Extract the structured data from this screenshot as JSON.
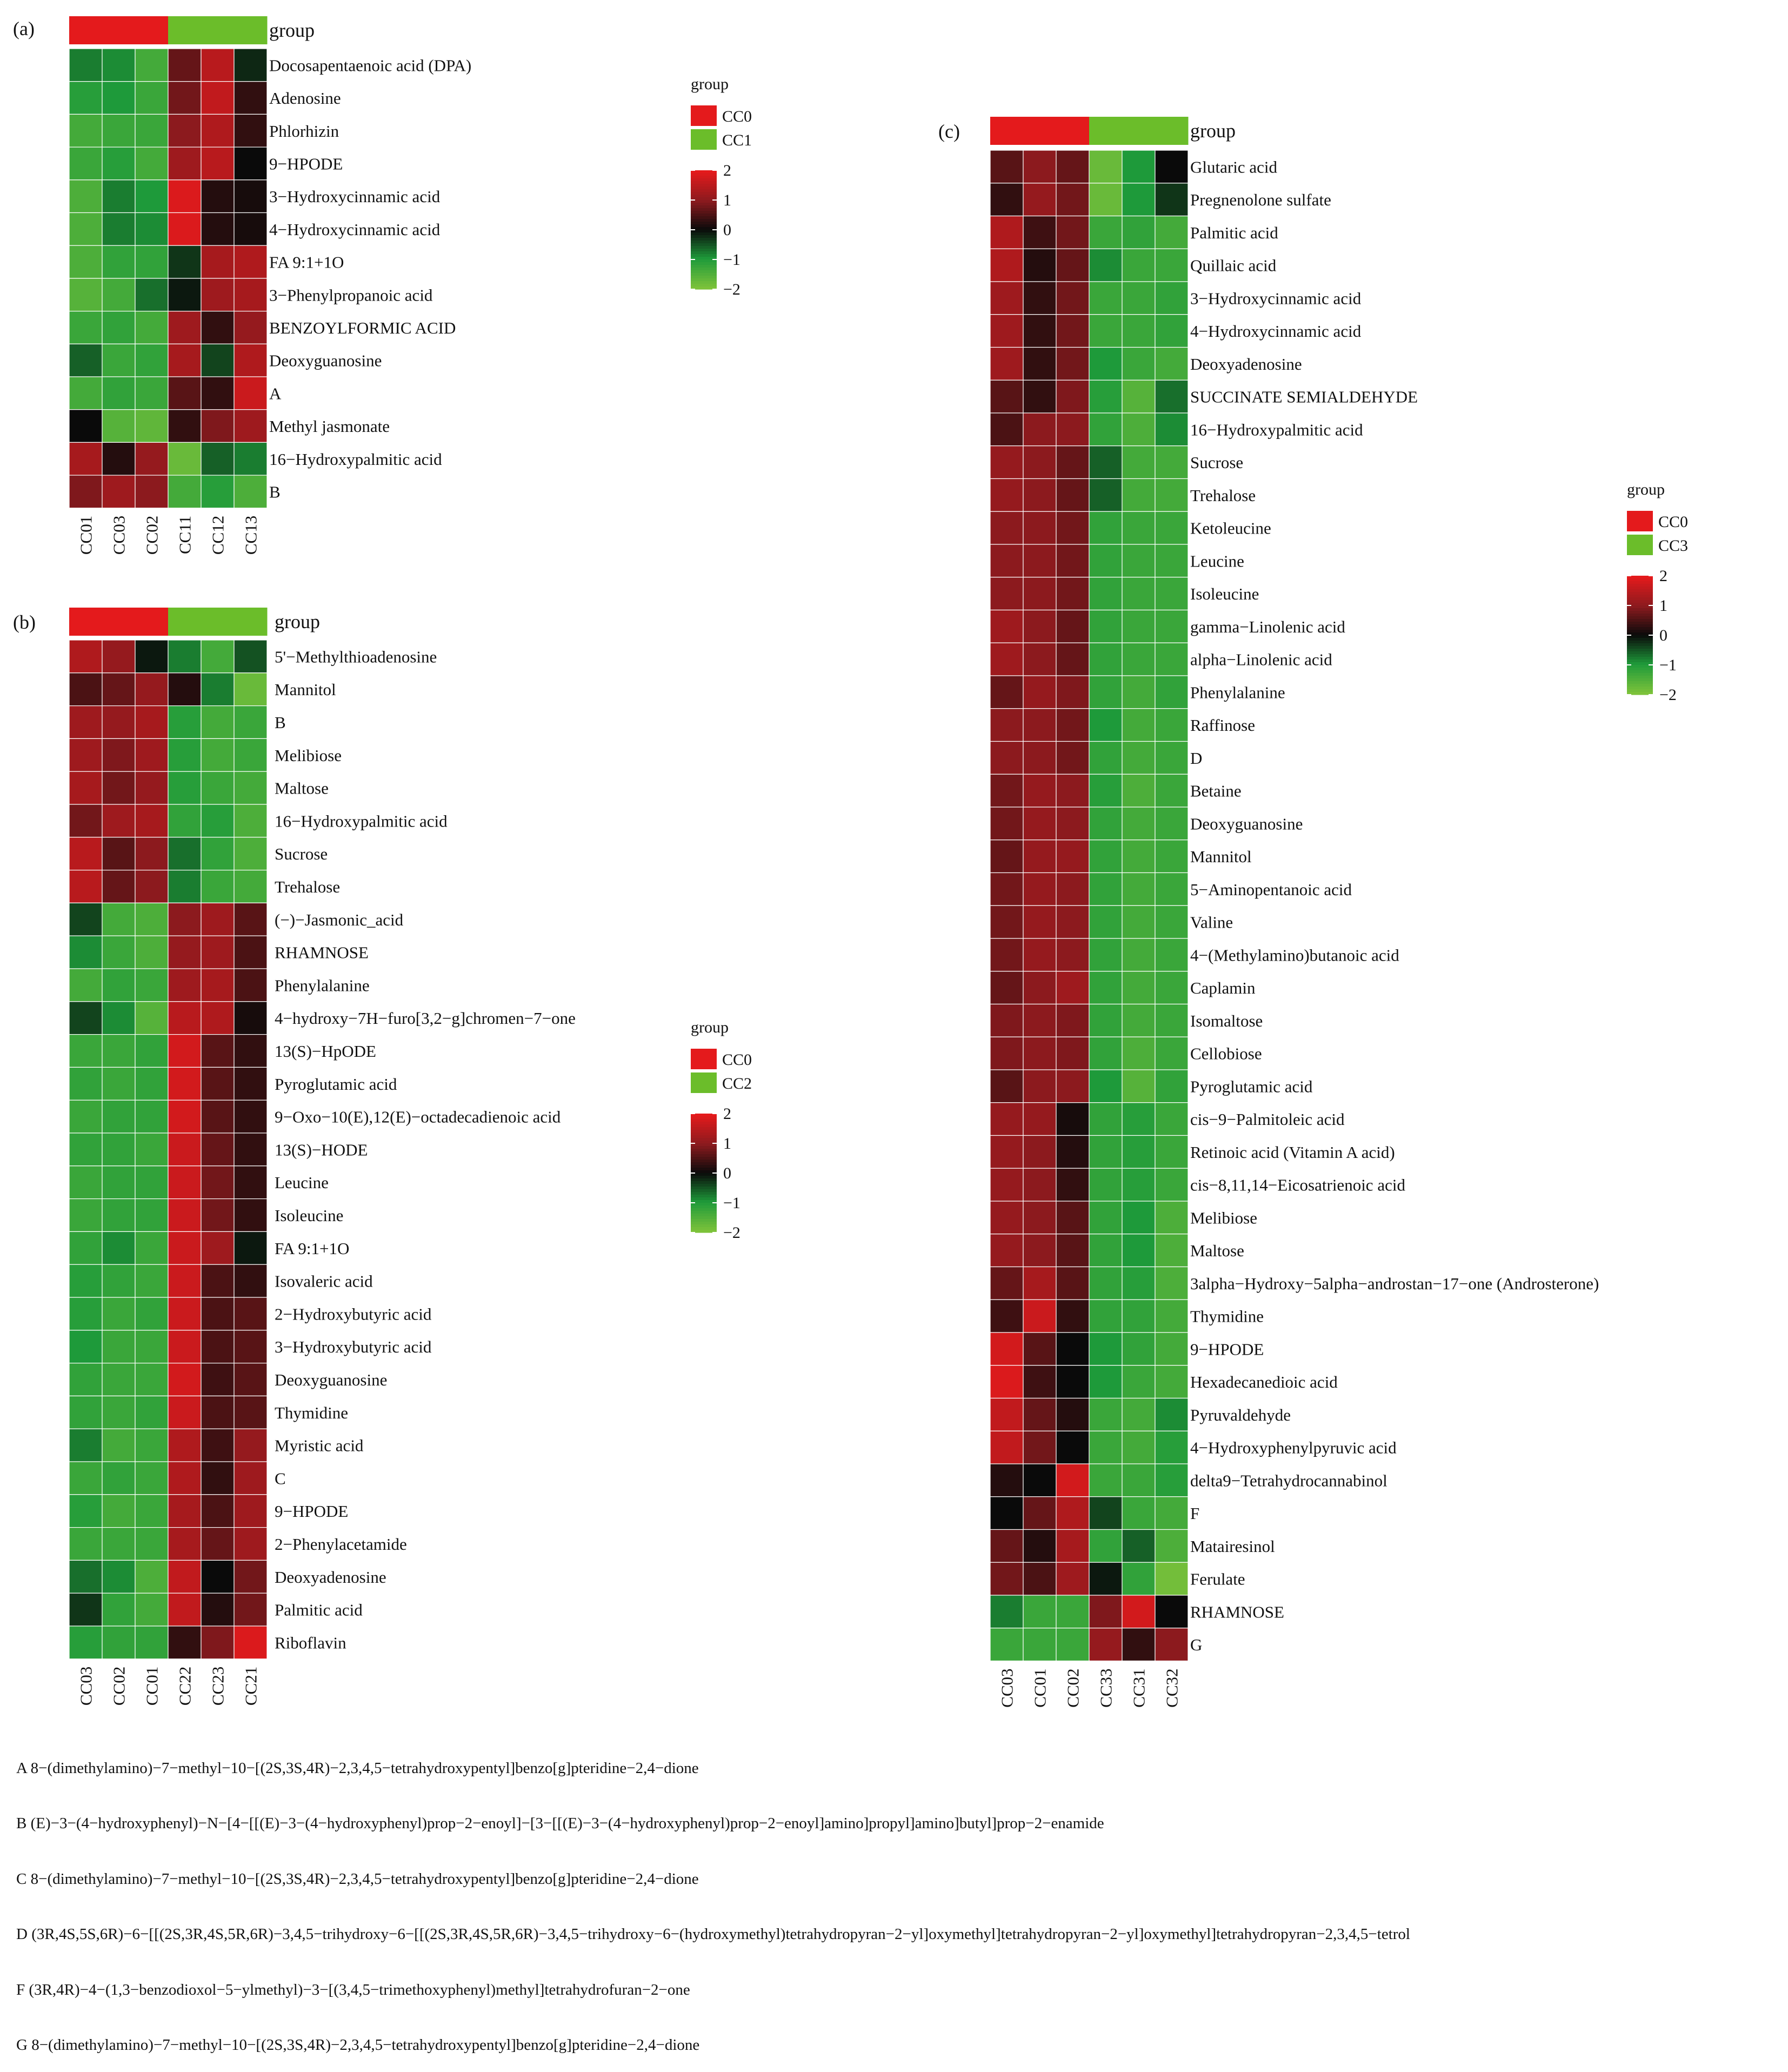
{
  "colors": {
    "cc0": "#e41a1c",
    "cc_other": "#6bbd2a",
    "scale": [
      "#7cc23a",
      "#1e9a3a",
      "#0a0a0a",
      "#8c1a1e",
      "#e41a1c"
    ]
  },
  "chart_data": [
    {
      "panel": "(a)",
      "type": "heatmap",
      "group_title": "group",
      "groups": [
        "CC0",
        "CC1"
      ],
      "columns": [
        "CC01",
        "CC03",
        "CC02",
        "CC11",
        "CC12",
        "CC13"
      ],
      "col_groups": [
        0,
        0,
        0,
        1,
        1,
        1
      ],
      "rows": [
        "Docosapentaenoic acid (DPA)",
        "Adenosine",
        "Phlorhizin",
        "9−HPODE",
        "3−Hydroxycinnamic acid",
        "4−Hydroxycinnamic acid",
        "FA 9:1+1O",
        "3−Phenylpropanoic acid",
        "BENZOYLFORMIC ACID",
        "Deoxyguanosine",
        "A",
        "Methyl jasmonate",
        "16−Hydroxypalmitic acid",
        "B"
      ],
      "values": [
        [
          -0.8,
          -0.9,
          -1.4,
          0.7,
          1.5,
          -0.2
        ],
        [
          -1.1,
          -1.0,
          -1.3,
          0.8,
          1.6,
          0.3
        ],
        [
          -1.4,
          -1.3,
          -1.3,
          1.0,
          1.4,
          0.3
        ],
        [
          -1.3,
          -1.1,
          -1.4,
          1.2,
          1.5,
          0.0
        ],
        [
          -1.5,
          -0.8,
          -1.0,
          1.9,
          0.2,
          0.1
        ],
        [
          -1.5,
          -0.8,
          -0.9,
          1.9,
          0.2,
          0.1
        ],
        [
          -1.5,
          -1.2,
          -1.2,
          -0.3,
          1.3,
          1.4
        ],
        [
          -1.6,
          -1.4,
          -0.7,
          -0.1,
          1.2,
          1.3
        ],
        [
          -1.3,
          -1.2,
          -1.4,
          1.2,
          0.3,
          1.1
        ],
        [
          -0.6,
          -1.3,
          -1.2,
          1.3,
          -0.4,
          1.4
        ],
        [
          -1.4,
          -1.2,
          -1.3,
          0.6,
          0.3,
          1.7
        ],
        [
          0.0,
          -1.6,
          -1.7,
          0.3,
          0.9,
          1.2
        ],
        [
          1.3,
          0.2,
          1.1,
          -1.8,
          -0.6,
          -0.8
        ],
        [
          0.9,
          1.2,
          1.0,
          -1.4,
          -1.1,
          -1.5
        ]
      ],
      "legend": {
        "title": "group",
        "labels": [
          "CC0",
          "CC1"
        ],
        "ticks": [
          2,
          1,
          0,
          -1,
          -2
        ],
        "tick_labels": [
          "2",
          "1",
          "0",
          "−1",
          "−2"
        ]
      }
    },
    {
      "panel": "(b)",
      "type": "heatmap",
      "group_title": "group",
      "groups": [
        "CC0",
        "CC2"
      ],
      "columns": [
        "CC03",
        "CC02",
        "CC01",
        "CC22",
        "CC23",
        "CC21"
      ],
      "col_groups": [
        0,
        0,
        0,
        1,
        1,
        1
      ],
      "rows": [
        "5'−Methylthioadenosine",
        "Mannitol",
        "B",
        "Melibiose",
        "Maltose",
        "16−Hydroxypalmitic acid",
        "Sucrose",
        "Trehalose",
        "(−)−Jasmonic_acid",
        "RHAMNOSE",
        "Phenylalanine",
        "4−hydroxy−7H−furo[3,2−g]chromen−7−one",
        "13(S)−HpODE",
        "Pyroglutamic acid",
        "9−Oxo−10(E),12(E)−octadecadienoic acid",
        "13(S)−HODE",
        "Leucine",
        "Isoleucine",
        "FA 9:1+1O",
        "Isovaleric acid",
        "2−Hydroxybutyric acid",
        "3−Hydroxybutyric acid",
        "Deoxyguanosine",
        "Thymidine",
        "Myristic acid",
        "C",
        "9−HPODE",
        "2−Phenylacetamide",
        "Deoxyadenosine",
        "Palmitic acid",
        "Riboflavin"
      ],
      "values": [
        [
          1.4,
          1.1,
          -0.1,
          -0.8,
          -1.4,
          -0.5
        ],
        [
          0.5,
          0.7,
          1.1,
          0.2,
          -0.8,
          -1.8
        ],
        [
          1.2,
          1.1,
          1.3,
          -1.1,
          -1.4,
          -1.3
        ],
        [
          1.2,
          0.9,
          1.2,
          -1.1,
          -1.4,
          -1.3
        ],
        [
          1.3,
          0.8,
          1.1,
          -1.1,
          -1.3,
          -1.4
        ],
        [
          0.8,
          1.2,
          1.3,
          -1.2,
          -1.1,
          -1.5
        ],
        [
          1.5,
          0.6,
          1.0,
          -0.7,
          -1.2,
          -1.5
        ],
        [
          1.5,
          0.7,
          1.0,
          -0.8,
          -1.3,
          -1.4
        ],
        [
          -0.4,
          -1.4,
          -1.5,
          1.0,
          1.2,
          0.6
        ],
        [
          -0.9,
          -1.3,
          -1.5,
          1.1,
          1.2,
          0.5
        ],
        [
          -1.4,
          -1.2,
          -1.3,
          1.2,
          1.3,
          0.5
        ],
        [
          -0.4,
          -0.9,
          -1.6,
          1.5,
          1.4,
          0.1
        ],
        [
          -1.3,
          -1.3,
          -1.2,
          1.8,
          0.6,
          0.3
        ],
        [
          -1.2,
          -1.3,
          -1.2,
          1.8,
          0.6,
          0.3
        ],
        [
          -1.3,
          -1.2,
          -1.2,
          1.8,
          0.6,
          0.3
        ],
        [
          -1.2,
          -1.2,
          -1.3,
          1.7,
          0.7,
          0.3
        ],
        [
          -1.3,
          -1.2,
          -1.2,
          1.7,
          0.8,
          0.3
        ],
        [
          -1.3,
          -1.2,
          -1.2,
          1.7,
          0.8,
          0.3
        ],
        [
          -1.2,
          -0.9,
          -1.3,
          1.7,
          1.2,
          -0.1
        ],
        [
          -1.1,
          -1.2,
          -1.3,
          1.7,
          0.5,
          0.3
        ],
        [
          -1.1,
          -1.3,
          -1.2,
          1.7,
          0.5,
          0.6
        ],
        [
          -1.0,
          -1.3,
          -1.3,
          1.7,
          0.5,
          0.6
        ],
        [
          -1.2,
          -1.3,
          -1.3,
          1.8,
          0.4,
          0.6
        ],
        [
          -1.2,
          -1.3,
          -1.2,
          1.7,
          0.5,
          0.6
        ],
        [
          -0.8,
          -1.4,
          -1.3,
          1.4,
          0.4,
          1.1
        ],
        [
          -1.3,
          -1.2,
          -1.3,
          1.4,
          0.3,
          1.2
        ],
        [
          -1.1,
          -1.4,
          -1.3,
          1.3,
          0.5,
          1.2
        ],
        [
          -1.3,
          -1.3,
          -1.3,
          1.3,
          0.7,
          1.2
        ],
        [
          -0.7,
          -0.9,
          -1.5,
          1.6,
          0.0,
          0.8
        ],
        [
          -0.3,
          -1.2,
          -1.4,
          1.6,
          0.2,
          0.8
        ],
        [
          -1.1,
          -1.2,
          -1.2,
          0.3,
          0.9,
          1.9
        ]
      ],
      "legend": {
        "title": "group",
        "labels": [
          "CC0",
          "CC2"
        ],
        "ticks": [
          2,
          1,
          0,
          -1,
          -2
        ],
        "tick_labels": [
          "2",
          "1",
          "0",
          "−1",
          "−2"
        ]
      }
    },
    {
      "panel": "(c)",
      "type": "heatmap",
      "group_title": "group",
      "groups": [
        "CC0",
        "CC3"
      ],
      "columns": [
        "CC03",
        "CC01",
        "CC02",
        "CC33",
        "CC31",
        "CC32"
      ],
      "col_groups": [
        0,
        0,
        0,
        1,
        1,
        1
      ],
      "rows": [
        "Glutaric acid",
        "Pregnenolone sulfate",
        "Palmitic acid",
        "Quillaic acid",
        "3−Hydroxycinnamic acid",
        "4−Hydroxycinnamic acid",
        "Deoxyadenosine",
        "SUCCINATE SEMIALDEHYDE",
        "16−Hydroxypalmitic acid",
        "Sucrose",
        "Trehalose",
        "Ketoleucine",
        "Leucine",
        "Isoleucine",
        "gamma−Linolenic acid",
        "alpha−Linolenic acid",
        "Phenylalanine",
        "Raffinose",
        "D",
        "Betaine",
        "Deoxyguanosine",
        "Mannitol",
        "5−Aminopentanoic acid",
        "Valine",
        "4−(Methylamino)butanoic acid",
        "Caplamin",
        "Isomaltose",
        "Cellobiose",
        "Pyroglutamic acid",
        "cis−9−Palmitoleic acid",
        "Retinoic acid (Vitamin A acid)",
        "cis−8,11,14−Eicosatrienoic acid",
        "Melibiose",
        "Maltose",
        "3alpha−Hydroxy−5alpha−androstan−17−one (Androsterone)",
        "Thymidine",
        "9−HPODE",
        "Hexadecanedioic acid",
        "Pyruvaldehyde",
        "4−Hydroxyphenylpyruvic acid",
        "delta9−Tetrahydrocannabinol",
        "F",
        "Matairesinol",
        "Ferulate",
        "RHAMNOSE",
        "G"
      ],
      "values": [
        [
          0.6,
          1.0,
          0.7,
          -1.8,
          -1.0,
          0.0
        ],
        [
          0.3,
          1.1,
          0.8,
          -1.8,
          -1.0,
          -0.3
        ],
        [
          1.4,
          0.4,
          0.8,
          -1.3,
          -1.2,
          -1.4
        ],
        [
          1.4,
          0.2,
          0.7,
          -0.9,
          -1.3,
          -1.3
        ],
        [
          1.2,
          0.3,
          0.8,
          -1.3,
          -1.3,
          -1.2
        ],
        [
          1.2,
          0.3,
          0.8,
          -1.3,
          -1.3,
          -1.2
        ],
        [
          1.2,
          0.3,
          0.8,
          -1.0,
          -1.3,
          -1.4
        ],
        [
          0.6,
          0.3,
          0.9,
          -1.1,
          -1.6,
          -0.7
        ],
        [
          0.5,
          1.0,
          1.0,
          -1.2,
          -1.5,
          -0.9
        ],
        [
          1.1,
          1.0,
          0.7,
          -0.6,
          -1.4,
          -1.4
        ],
        [
          1.1,
          1.0,
          0.7,
          -0.6,
          -1.4,
          -1.4
        ],
        [
          1.0,
          1.0,
          0.8,
          -1.2,
          -1.3,
          -1.3
        ],
        [
          1.0,
          1.0,
          0.8,
          -1.2,
          -1.3,
          -1.3
        ],
        [
          1.0,
          1.0,
          0.8,
          -1.2,
          -1.3,
          -1.3
        ],
        [
          1.2,
          1.0,
          0.7,
          -1.2,
          -1.3,
          -1.3
        ],
        [
          1.2,
          1.0,
          0.7,
          -1.2,
          -1.3,
          -1.3
        ],
        [
          0.7,
          1.1,
          0.9,
          -1.2,
          -1.4,
          -1.2
        ],
        [
          1.0,
          1.0,
          0.8,
          -1.0,
          -1.4,
          -1.3
        ],
        [
          1.0,
          1.0,
          0.8,
          -1.2,
          -1.4,
          -1.3
        ],
        [
          0.8,
          1.1,
          1.0,
          -1.1,
          -1.5,
          -1.3
        ],
        [
          0.8,
          1.1,
          1.0,
          -1.2,
          -1.4,
          -1.3
        ],
        [
          0.7,
          1.1,
          1.1,
          -1.2,
          -1.4,
          -1.3
        ],
        [
          0.8,
          1.1,
          1.0,
          -1.2,
          -1.4,
          -1.3
        ],
        [
          0.8,
          1.1,
          1.0,
          -1.2,
          -1.4,
          -1.3
        ],
        [
          0.8,
          1.1,
          1.0,
          -1.2,
          -1.4,
          -1.3
        ],
        [
          0.7,
          1.0,
          1.2,
          -1.2,
          -1.4,
          -1.3
        ],
        [
          0.9,
          1.0,
          0.9,
          -1.2,
          -1.4,
          -1.3
        ],
        [
          0.9,
          1.0,
          0.9,
          -1.2,
          -1.5,
          -1.3
        ],
        [
          0.6,
          1.0,
          1.0,
          -1.0,
          -1.6,
          -1.2
        ],
        [
          1.1,
          1.1,
          0.1,
          -1.2,
          -1.1,
          -1.3
        ],
        [
          1.1,
          1.0,
          0.2,
          -1.2,
          -1.1,
          -1.3
        ],
        [
          1.1,
          1.0,
          0.3,
          -1.2,
          -1.1,
          -1.3
        ],
        [
          1.1,
          1.0,
          0.6,
          -1.2,
          -1.0,
          -1.5
        ],
        [
          1.1,
          1.0,
          0.6,
          -1.2,
          -1.0,
          -1.5
        ],
        [
          0.7,
          1.3,
          0.6,
          -1.2,
          -1.1,
          -1.5
        ],
        [
          0.4,
          1.7,
          0.3,
          -1.2,
          -1.2,
          -1.4
        ],
        [
          1.8,
          0.6,
          0.0,
          -1.0,
          -1.2,
          -1.4
        ],
        [
          1.9,
          0.4,
          0.0,
          -1.0,
          -1.3,
          -1.4
        ],
        [
          1.6,
          0.7,
          0.2,
          -1.3,
          -1.4,
          -0.9
        ],
        [
          1.6,
          0.8,
          0.0,
          -1.3,
          -1.4,
          -1.1
        ],
        [
          0.2,
          0.0,
          1.8,
          -1.3,
          -1.3,
          -1.1
        ],
        [
          0.0,
          0.7,
          1.4,
          -0.4,
          -1.3,
          -1.4
        ],
        [
          0.7,
          0.2,
          1.3,
          -1.2,
          -0.6,
          -1.5
        ],
        [
          0.8,
          0.5,
          1.2,
          -0.1,
          -1.2,
          -1.9
        ],
        [
          -0.8,
          -1.3,
          -1.3,
          0.9,
          1.8,
          0.0
        ],
        [
          -1.3,
          -1.3,
          -1.3,
          1.1,
          0.3,
          1.0
        ]
      ],
      "legend": {
        "title": "group",
        "labels": [
          "CC0",
          "CC3"
        ],
        "ticks": [
          2,
          1,
          0,
          -1,
          -2
        ],
        "tick_labels": [
          "2",
          "1",
          "0",
          "−1",
          "−2"
        ]
      }
    }
  ],
  "footnotes": [
    "A 8−(dimethylamino)−7−methyl−10−[(2S,3S,4R)−2,3,4,5−tetrahydroxypentyl]benzo[g]pteridine−2,4−dione",
    "B (E)−3−(4−hydroxyphenyl)−N−[4−[[(E)−3−(4−hydroxyphenyl)prop−2−enoyl]−[3−[[(E)−3−(4−hydroxyphenyl)prop−2−enoyl]amino]propyl]amino]butyl]prop−2−enamide",
    "C 8−(dimethylamino)−7−methyl−10−[(2S,3S,4R)−2,3,4,5−tetrahydroxypentyl]benzo[g]pteridine−2,4−dione",
    "D (3R,4S,5S,6R)−6−[[(2S,3R,4S,5R,6R)−3,4,5−trihydroxy−6−[[(2S,3R,4S,5R,6R)−3,4,5−trihydroxy−6−(hydroxymethyl)tetrahydropyran−2−yl]oxymethyl]tetrahydropyran−2−yl]oxymethyl]tetrahydropyran−2,3,4,5−tetrol",
    "F (3R,4R)−4−(1,3−benzodioxol−5−ylmethyl)−3−[(3,4,5−trimethoxyphenyl)methyl]tetrahydrofuran−2−one",
    "G 8−(dimethylamino)−7−methyl−10−[(2S,3S,4R)−2,3,4,5−tetrahydroxypentyl]benzo[g]pteridine−2,4−dione"
  ]
}
